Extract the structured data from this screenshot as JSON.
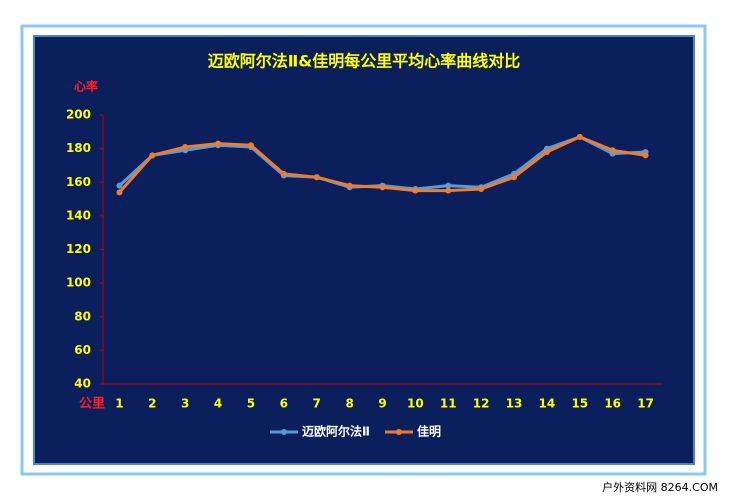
{
  "chart_data": {
    "type": "line",
    "title": "迈欧阿尔法Ⅱ&佳明每公里平均心率曲线对比",
    "y_label": "心率",
    "x_label": "公里",
    "categories": [
      "1",
      "2",
      "3",
      "4",
      "5",
      "6",
      "7",
      "8",
      "9",
      "10",
      "11",
      "12",
      "13",
      "14",
      "15",
      "16",
      "17"
    ],
    "series": [
      {
        "name": "迈欧阿尔法Ⅱ",
        "color": "#5b9bd5",
        "values": [
          158,
          176,
          179,
          182,
          181,
          164,
          163,
          157,
          158,
          156,
          158,
          157,
          165,
          180,
          187,
          177,
          178
        ]
      },
      {
        "name": "佳明",
        "color": "#ed7d31",
        "values": [
          154,
          176,
          181,
          183,
          182,
          165,
          163,
          158,
          157,
          155,
          155,
          156,
          163,
          178,
          187,
          179,
          176
        ]
      }
    ],
    "ylim": [
      40,
      200
    ],
    "yticks": [
      40,
      60,
      80,
      100,
      120,
      140,
      160,
      180,
      200
    ],
    "grid": false
  },
  "watermark": "户外资料网 8264.COM"
}
